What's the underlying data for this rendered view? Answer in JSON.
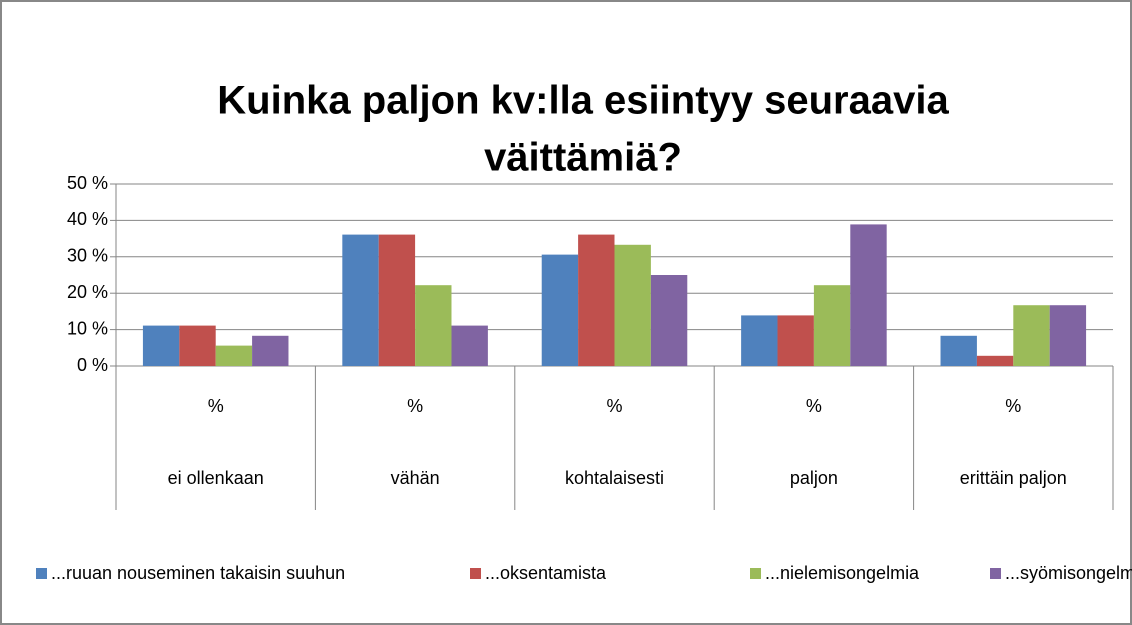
{
  "chart_data": {
    "type": "bar",
    "title": [
      "Kuinka paljon kv:lla esiintyy seuraavia",
      "väittämiä?"
    ],
    "categories": [
      "ei ollenkaan",
      "vähän",
      "kohtalaisesti",
      "paljon",
      "erittäin paljon"
    ],
    "subcategories": [
      "%",
      "%",
      "%",
      "%",
      "%"
    ],
    "series": [
      {
        "name": "...ruuan nouseminen takaisin suuhun",
        "color": "#4f81bd",
        "values": [
          11.1,
          36.1,
          30.6,
          13.9,
          8.3
        ]
      },
      {
        "name": "...oksentamista",
        "color": "#c0504d",
        "values": [
          11.1,
          36.1,
          36.1,
          13.9,
          2.8
        ]
      },
      {
        "name": "...nielemisongelmia",
        "color": "#9bbb59",
        "values": [
          5.6,
          22.2,
          33.3,
          22.2,
          16.7
        ]
      },
      {
        "name": "...syömisongelmia",
        "color": "#8064a2",
        "values": [
          8.3,
          11.1,
          25,
          38.9,
          16.7
        ]
      }
    ],
    "ylim": [
      0,
      50
    ],
    "yticks": [
      {
        "value": 0,
        "label": "0 %"
      },
      {
        "value": 10,
        "label": "10 %"
      },
      {
        "value": 20,
        "label": "20 %"
      },
      {
        "value": 30,
        "label": "30 %"
      },
      {
        "value": 40,
        "label": "40 %"
      },
      {
        "value": 50,
        "label": "50 %"
      }
    ],
    "grid": true,
    "legend": "bottom"
  }
}
